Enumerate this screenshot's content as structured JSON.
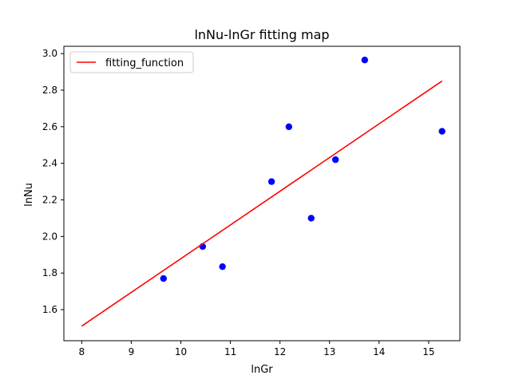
{
  "chart_data": {
    "type": "scatter",
    "title": "lnNu-lnGr fitting map",
    "xlabel": "lnGr",
    "ylabel": "lnNu",
    "xlim": [
      7.64,
      15.63
    ],
    "ylim": [
      1.43,
      3.04
    ],
    "xticks": [
      "8",
      "9",
      "10",
      "11",
      "12",
      "13",
      "14",
      "15"
    ],
    "yticks": [
      "1.6",
      "1.8",
      "2.0",
      "2.2",
      "2.4",
      "2.6",
      "2.8",
      "3.0"
    ],
    "grid": false,
    "legend_position": "upper-left",
    "series": [
      {
        "kind": "scatter",
        "color": "#0000ff",
        "points": [
          {
            "x": 9.65,
            "y": 1.77
          },
          {
            "x": 10.44,
            "y": 1.945
          },
          {
            "x": 10.84,
            "y": 1.835
          },
          {
            "x": 11.83,
            "y": 2.3
          },
          {
            "x": 12.18,
            "y": 2.6
          },
          {
            "x": 12.63,
            "y": 2.1
          },
          {
            "x": 13.12,
            "y": 2.42
          },
          {
            "x": 13.71,
            "y": 2.965
          },
          {
            "x": 15.27,
            "y": 2.575
          }
        ]
      },
      {
        "name": "fitting_function",
        "kind": "line",
        "color": "#ff0000",
        "points": [
          {
            "x": 8.0,
            "y": 1.51
          },
          {
            "x": 15.27,
            "y": 2.85
          }
        ]
      }
    ]
  }
}
